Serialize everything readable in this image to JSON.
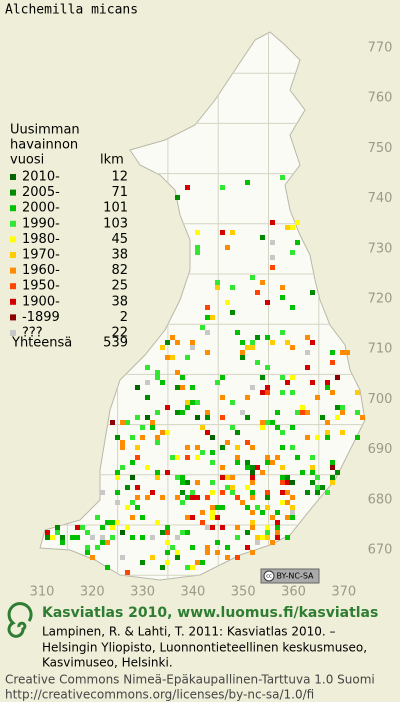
{
  "title": "Alchemilla micans",
  "legend": {
    "heading": [
      "Uusimman",
      "havainnon",
      "vuosi"
    ],
    "count_heading": "lkm",
    "items": [
      {
        "label": "2010-",
        "count": 12,
        "color": "#006400"
      },
      {
        "label": "2005-",
        "count": 71,
        "color": "#008a00"
      },
      {
        "label": "2000-",
        "count": 101,
        "color": "#00c000"
      },
      {
        "label": "1990-",
        "count": 103,
        "color": "#33e633"
      },
      {
        "label": "1980-",
        "count": 45,
        "color": "#ffff00"
      },
      {
        "label": "1970-",
        "count": 38,
        "color": "#ffcc00"
      },
      {
        "label": "1960-",
        "count": 82,
        "color": "#ff8c00"
      },
      {
        "label": "1950-",
        "count": 25,
        "color": "#ff4500"
      },
      {
        "label": "1900-",
        "count": 38,
        "color": "#d40000"
      },
      {
        "label": "-1899",
        "count": 2,
        "color": "#8b0000"
      },
      {
        "label": "???",
        "count": 22,
        "color": "#c8c8c8"
      }
    ],
    "total_label": "Yhteensä",
    "total": 539
  },
  "grid": {
    "north": [
      770,
      760,
      750,
      740,
      730,
      720,
      710,
      700,
      690,
      680,
      670
    ],
    "east": [
      310,
      320,
      330,
      340,
      350,
      360,
      370
    ]
  },
  "badge": "BY-NC-SA",
  "footer": {
    "site": "Kasviatlas 2010, www.luomus.fi/kasviatlas",
    "citation": [
      "Lampinen, R. & Lahti, T. 2011: Kasviatlas 2010. –",
      "Helsingin Yliopisto, Luonnontieteellinen keskusmuseo,",
      "Kasvimuseo, Helsinki."
    ],
    "license": [
      "Creative Commons Nimeä-Epäkaupallinen-Tarttuva 1.0 Suomi",
      "http://creativecommons.org/licenses/by-nc-sa/1.0/fi"
    ]
  }
}
